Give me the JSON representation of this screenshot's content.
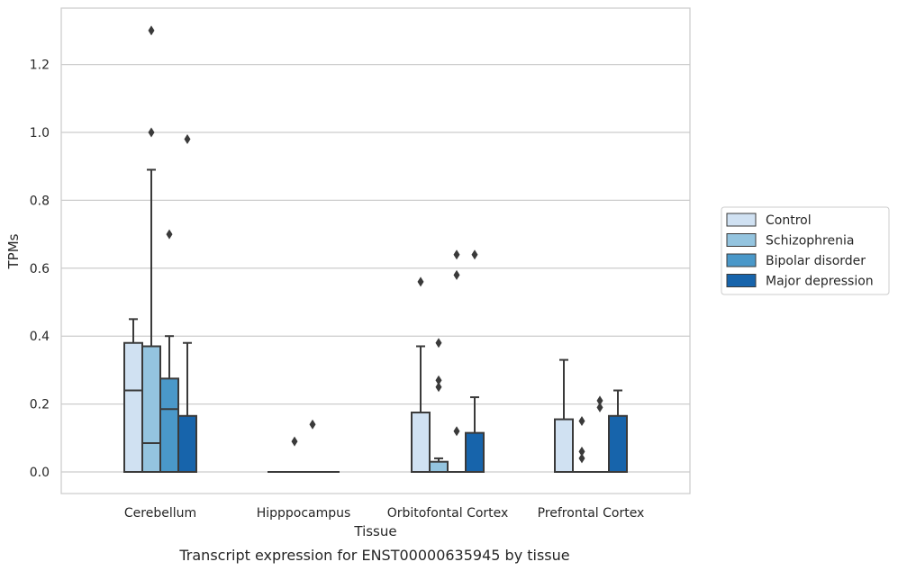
{
  "chart_data": {
    "type": "box",
    "title": "Transcript expression for ENST00000635945 by tissue",
    "xlabel": "Tissue",
    "ylabel": "TPMs",
    "ylim": [
      -0.065,
      1.37
    ],
    "yticks": [
      0.0,
      0.2,
      0.4,
      0.6,
      0.8,
      1.0,
      1.2
    ],
    "ytick_labels": [
      "0.0",
      "0.2",
      "0.4",
      "0.6",
      "0.8",
      "1.0",
      "1.2"
    ],
    "grid": "horizontal",
    "legend_position": "right",
    "categories": [
      "Cerebellum",
      "Hipppocampus",
      "Orbitofontal Cortex",
      "Prefrontal Cortex"
    ],
    "series": [
      {
        "name": "Control",
        "color": "#d0e1f2",
        "boxes": [
          {
            "q1": 0.0,
            "median": 0.24,
            "q3": 0.38,
            "whisker_low": 0.0,
            "whisker_high": 0.45,
            "outliers": []
          },
          {
            "q1": 0.0,
            "median": 0.0,
            "q3": 0.0,
            "whisker_low": 0.0,
            "whisker_high": 0.0,
            "outliers": []
          },
          {
            "q1": 0.0,
            "median": 0.0,
            "q3": 0.175,
            "whisker_low": 0.0,
            "whisker_high": 0.37,
            "outliers": [
              0.56
            ]
          },
          {
            "q1": 0.0,
            "median": 0.0,
            "q3": 0.155,
            "whisker_low": 0.0,
            "whisker_high": 0.33,
            "outliers": []
          }
        ]
      },
      {
        "name": "Schizophrenia",
        "color": "#94c4df",
        "boxes": [
          {
            "q1": 0.0,
            "median": 0.085,
            "q3": 0.37,
            "whisker_low": 0.0,
            "whisker_high": 0.89,
            "outliers": [
              1.0,
              1.3
            ]
          },
          {
            "q1": 0.0,
            "median": 0.0,
            "q3": 0.0,
            "whisker_low": 0.0,
            "whisker_high": 0.0,
            "outliers": [
              0.09
            ]
          },
          {
            "q1": 0.0,
            "median": 0.0,
            "q3": 0.03,
            "whisker_low": 0.0,
            "whisker_high": 0.04,
            "outliers": [
              0.25,
              0.27,
              0.38
            ]
          },
          {
            "q1": 0.0,
            "median": 0.0,
            "q3": 0.0,
            "whisker_low": 0.0,
            "whisker_high": 0.0,
            "outliers": [
              0.04,
              0.06,
              0.15
            ]
          }
        ]
      },
      {
        "name": "Bipolar disorder",
        "color": "#4a98c9",
        "boxes": [
          {
            "q1": 0.0,
            "median": 0.185,
            "q3": 0.275,
            "whisker_low": 0.0,
            "whisker_high": 0.4,
            "outliers": [
              0.7
            ]
          },
          {
            "q1": 0.0,
            "median": 0.0,
            "q3": 0.0,
            "whisker_low": 0.0,
            "whisker_high": 0.0,
            "outliers": [
              0.14
            ]
          },
          {
            "q1": 0.0,
            "median": 0.0,
            "q3": 0.0,
            "whisker_low": 0.0,
            "whisker_high": 0.0,
            "outliers": [
              0.12,
              0.58,
              0.64
            ]
          },
          {
            "q1": 0.0,
            "median": 0.0,
            "q3": 0.0,
            "whisker_low": 0.0,
            "whisker_high": 0.0,
            "outliers": [
              0.19,
              0.21
            ]
          }
        ]
      },
      {
        "name": "Major depression",
        "color": "#1764ab",
        "boxes": [
          {
            "q1": 0.0,
            "median": 0.0,
            "q3": 0.165,
            "whisker_low": 0.0,
            "whisker_high": 0.38,
            "outliers": [
              0.98
            ]
          },
          {
            "q1": 0.0,
            "median": 0.0,
            "q3": 0.0,
            "whisker_low": 0.0,
            "whisker_high": 0.0,
            "outliers": []
          },
          {
            "q1": 0.0,
            "median": 0.0,
            "q3": 0.115,
            "whisker_low": 0.0,
            "whisker_high": 0.22,
            "outliers": [
              0.64
            ]
          },
          {
            "q1": 0.0,
            "median": 0.0,
            "q3": 0.165,
            "whisker_low": 0.0,
            "whisker_high": 0.24,
            "outliers": []
          }
        ]
      }
    ]
  }
}
